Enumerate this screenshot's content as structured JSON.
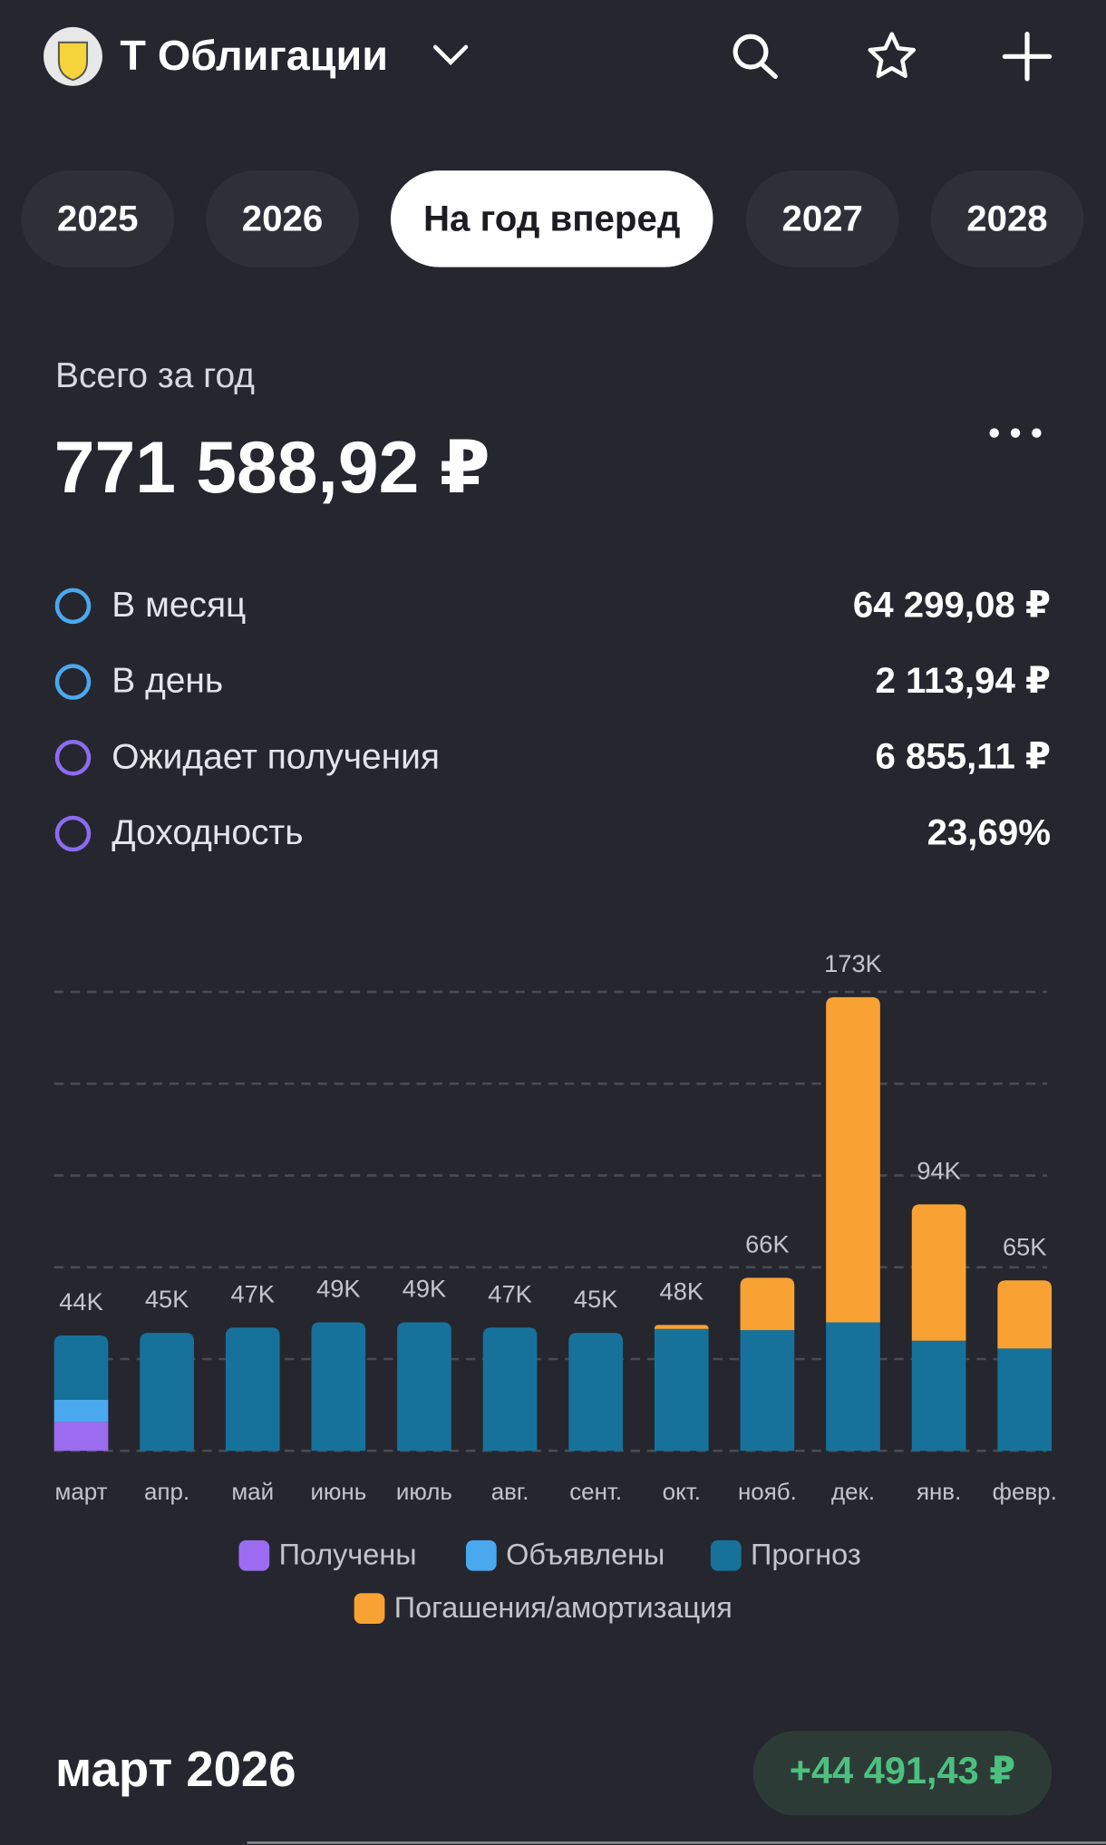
{
  "header": {
    "title": "Т Облигации"
  },
  "tabs": {
    "items": [
      "2025",
      "2026",
      "На год вперед",
      "2027",
      "2028"
    ],
    "selected": 2
  },
  "summary": {
    "label": "Всего за год",
    "total": "771 588,92 ₽"
  },
  "stats": [
    {
      "label": "В месяц",
      "value": "64 299,08 ₽",
      "color": "#4aa8ee"
    },
    {
      "label": "В день",
      "value": "2 113,94 ₽",
      "color": "#4aa8ee"
    },
    {
      "label": "Ожидает получения",
      "value": "6 855,11 ₽",
      "color": "#8a6cf0"
    },
    {
      "label": "Доходность",
      "value": "23,69%",
      "color": "#8a6cf0"
    }
  ],
  "chart_data": {
    "type": "stacked-bar",
    "categories": [
      "март",
      "апр.",
      "май",
      "июнь",
      "июль",
      "авг.",
      "сент.",
      "окт.",
      "нояб.",
      "дек.",
      "янв.",
      "февр."
    ],
    "series": [
      {
        "name": "Получены",
        "color": "#9b6cf0",
        "values": [
          11000,
          0,
          0,
          0,
          0,
          0,
          0,
          0,
          0,
          0,
          0,
          0
        ]
      },
      {
        "name": "Объявлены",
        "color": "#4aa8ee",
        "values": [
          8500,
          0,
          0,
          0,
          0,
          0,
          0,
          0,
          0,
          0,
          0,
          0
        ]
      },
      {
        "name": "Прогноз",
        "color": "#17729b",
        "values": [
          24500,
          45000,
          47000,
          49000,
          49000,
          47000,
          45000,
          46500,
          46000,
          49000,
          42000,
          39000
        ]
      },
      {
        "name": "Погашения/амортизация",
        "color": "#f8a233",
        "values": [
          0,
          0,
          0,
          0,
          0,
          0,
          0,
          1500,
          20000,
          124000,
          52000,
          26000
        ]
      }
    ],
    "total_labels": [
      "44K",
      "45K",
      "47K",
      "49K",
      "49K",
      "47K",
      "45K",
      "48K",
      "66K",
      "173K",
      "94K",
      "65K"
    ],
    "ylim": [
      0,
      175000
    ],
    "yticks": [
      0,
      35000,
      70000,
      105000,
      140000,
      175000
    ],
    "grid": true
  },
  "footer": {
    "month": "март 2026",
    "change": "+44 491,43 ₽"
  }
}
